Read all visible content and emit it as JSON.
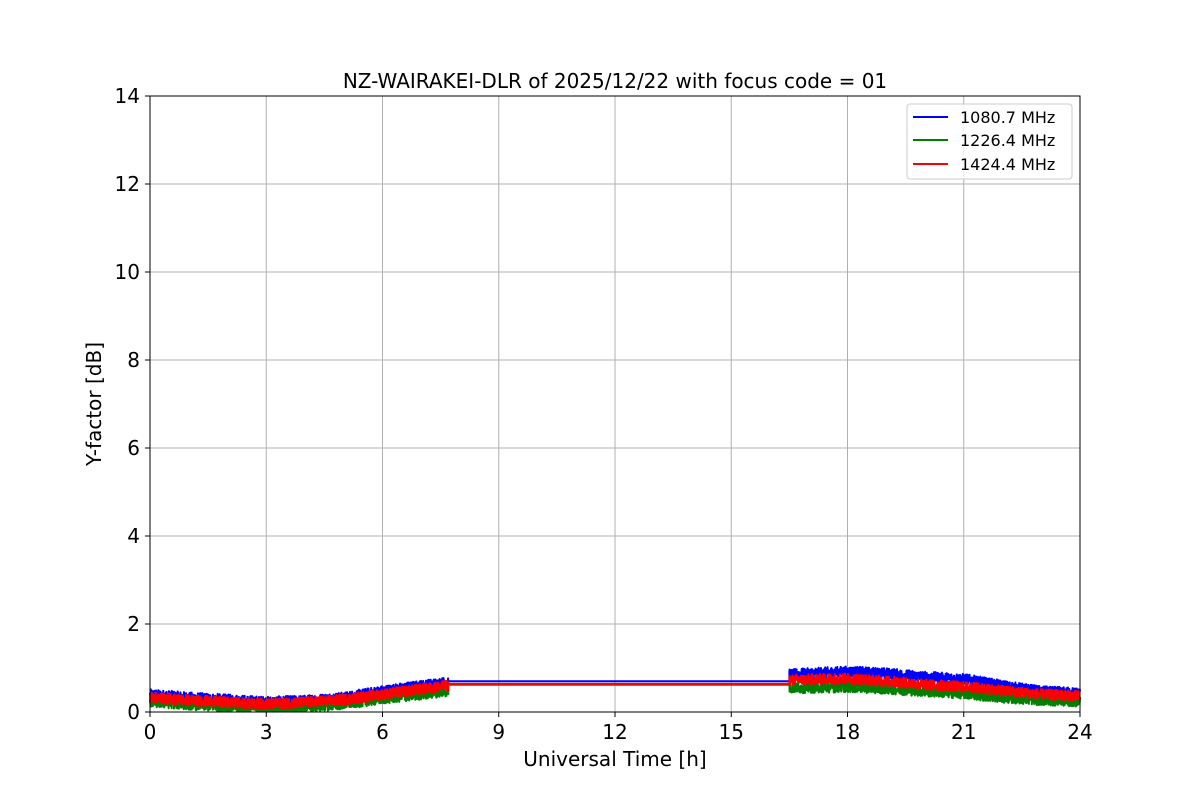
{
  "chart_data": {
    "type": "line",
    "title": "NZ-WAIRAKEI-DLR of 2025/12/22 with focus code = 01",
    "xlabel": "Universal Time [h]",
    "ylabel": "Y-factor [dB]",
    "xlim": [
      0,
      24
    ],
    "ylim": [
      0,
      14
    ],
    "xticks": [
      0,
      3,
      6,
      9,
      12,
      15,
      18,
      21,
      24
    ],
    "yticks": [
      0,
      2,
      4,
      6,
      8,
      10,
      12,
      14
    ],
    "grid": true,
    "legend_position": "top-right",
    "noise_amplitude": 0.12,
    "series": [
      {
        "name": "1080.7 MHz",
        "color": "#0000ff",
        "x": [
          0,
          1,
          2,
          3,
          4,
          5,
          6,
          7,
          7.7,
          16.5,
          17,
          18,
          19,
          20,
          21,
          22,
          23,
          24
        ],
        "y": [
          0.4,
          0.33,
          0.28,
          0.23,
          0.26,
          0.33,
          0.48,
          0.6,
          0.68,
          0.85,
          0.88,
          0.92,
          0.88,
          0.8,
          0.75,
          0.6,
          0.47,
          0.43
        ]
      },
      {
        "name": "1226.4 MHz",
        "color": "#008000",
        "x": [
          0,
          1,
          2,
          3,
          4,
          5,
          6,
          7,
          7.7,
          16.5,
          17,
          18,
          19,
          20,
          21,
          22,
          23,
          24
        ],
        "y": [
          0.23,
          0.17,
          0.12,
          0.08,
          0.11,
          0.18,
          0.3,
          0.4,
          0.48,
          0.55,
          0.55,
          0.57,
          0.53,
          0.47,
          0.42,
          0.33,
          0.27,
          0.24
        ]
      },
      {
        "name": "1424.4 MHz",
        "color": "#ff0000",
        "x": [
          0,
          1,
          2,
          3,
          4,
          5,
          6,
          7,
          7.7,
          16.5,
          17,
          18,
          19,
          20,
          21,
          22,
          23,
          24
        ],
        "y": [
          0.33,
          0.27,
          0.22,
          0.18,
          0.22,
          0.28,
          0.4,
          0.52,
          0.6,
          0.72,
          0.74,
          0.76,
          0.7,
          0.62,
          0.57,
          0.48,
          0.4,
          0.36
        ]
      }
    ],
    "gap": {
      "start": 7.7,
      "end": 16.5,
      "values": [
        {
          "series": "1080.7 MHz",
          "y": 0.7
        },
        {
          "series": "1226.4 MHz",
          "y": 0.62
        },
        {
          "series": "1424.4 MHz",
          "y": 0.64
        }
      ]
    }
  }
}
